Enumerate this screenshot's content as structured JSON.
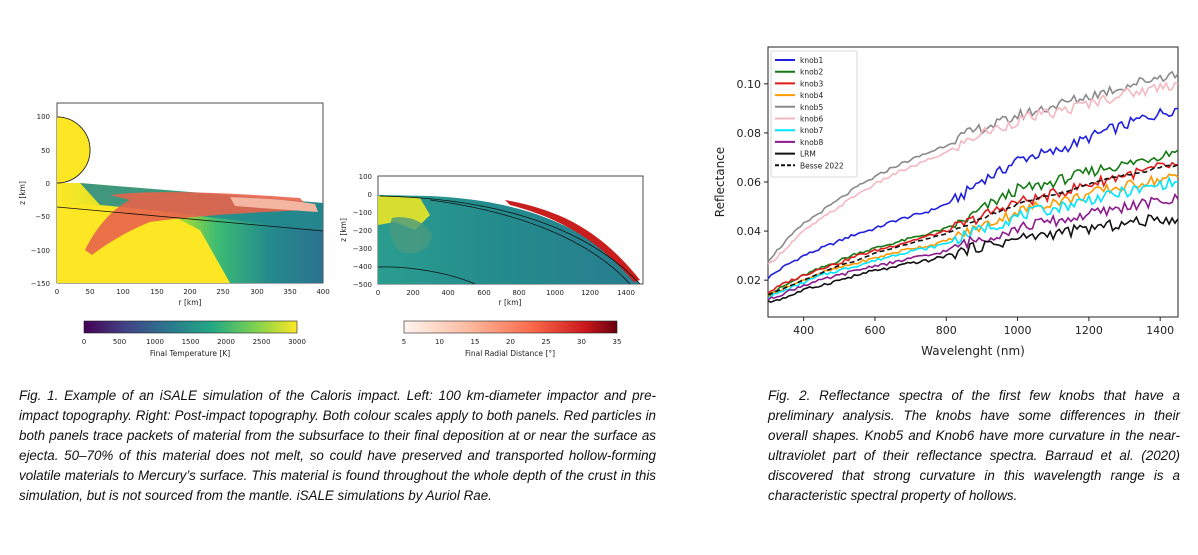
{
  "figure1": {
    "left_panel": {
      "xlabel": "r [km]",
      "ylabel": "z [km]",
      "xticks": [
        "0",
        "50",
        "100",
        "150",
        "200",
        "250",
        "300",
        "350",
        "400"
      ],
      "yticks": [
        "100",
        "50",
        "0",
        "−50",
        "−100",
        "−150"
      ]
    },
    "right_panel": {
      "xlabel": "r [km]",
      "ylabel": "z [km]",
      "xticks": [
        "0",
        "200",
        "400",
        "600",
        "800",
        "1000",
        "1200",
        "1400"
      ],
      "yticks": [
        "100",
        "0",
        "−100",
        "−200",
        "−300",
        "−400",
        "−500"
      ]
    },
    "colorbar_temperature": {
      "label": "Final Temperature [K]",
      "ticks": [
        "0",
        "500",
        "1000",
        "1500",
        "2000",
        "2500",
        "3000"
      ]
    },
    "colorbar_distance": {
      "label": "Final Radial Distance [°]",
      "ticks": [
        "5",
        "10",
        "15",
        "20",
        "25",
        "30",
        "35"
      ]
    },
    "caption": "Fig. 1. Example of an iSALE simulation of the Caloris impact. Left: 100 km-diameter impactor and pre-impact topography. Right: Post-impact topography. Both colour scales apply to both panels. Red particles in both panels trace packets of material from the subsurface to their final deposition at or near the surface as ejecta. 50–70% of this material does not melt, so could have preserved and transported hollow-forming volatile materials to Mercury’s surface. This material is found throughout the whole depth of the crust in this simulation, but is not sourced from the mantle. iSALE simulations by Auriol Rae."
  },
  "figure2": {
    "caption": "Fig. 2. Reflectance spectra of the first few knobs that have a preliminary analysis. The knobs have some differences in their overall shapes. Knob5 and Knob6 have more curvature in the near-ultraviolet part of their reflectance spectra. Barraud et al. (2020) discovered that strong curvature in this wavelength range is a characteristic spectral property of hollows."
  },
  "chart_data": {
    "type": "line",
    "title": "",
    "xlabel": "Wavelenght (nm)",
    "ylabel": "Reflectance",
    "xlim": [
      300,
      1450
    ],
    "ylim": [
      0.005,
      0.115
    ],
    "xticks": [
      400,
      600,
      800,
      1000,
      1200,
      1400
    ],
    "yticks": [
      0.02,
      0.04,
      0.06,
      0.08,
      0.1
    ],
    "ytick_labels": [
      "0.02",
      "0.04",
      "0.06",
      "0.08",
      "0.10"
    ],
    "grid": false,
    "legend_position": "top-left",
    "x": [
      300,
      350,
      400,
      450,
      500,
      550,
      600,
      650,
      700,
      750,
      800,
      850,
      900,
      950,
      1000,
      1050,
      1100,
      1150,
      1200,
      1250,
      1300,
      1350,
      1400,
      1450
    ],
    "series": [
      {
        "name": "knob1",
        "color": "#1f1fe0",
        "dash": "solid",
        "values": [
          0.021,
          0.026,
          0.03,
          0.033,
          0.036,
          0.039,
          0.041,
          0.044,
          0.046,
          0.048,
          0.051,
          0.055,
          0.061,
          0.064,
          0.069,
          0.071,
          0.072,
          0.075,
          0.078,
          0.081,
          0.083,
          0.086,
          0.088,
          0.09
        ]
      },
      {
        "name": "knob2",
        "color": "#157a15",
        "dash": "solid",
        "values": [
          0.014,
          0.018,
          0.022,
          0.025,
          0.028,
          0.031,
          0.033,
          0.035,
          0.037,
          0.039,
          0.041,
          0.044,
          0.049,
          0.053,
          0.057,
          0.058,
          0.06,
          0.062,
          0.064,
          0.066,
          0.067,
          0.069,
          0.071,
          0.073
        ]
      },
      {
        "name": "knob3",
        "color": "#e01a1a",
        "dash": "solid",
        "values": [
          0.015,
          0.019,
          0.022,
          0.025,
          0.027,
          0.03,
          0.032,
          0.034,
          0.036,
          0.038,
          0.04,
          0.043,
          0.046,
          0.049,
          0.052,
          0.053,
          0.055,
          0.057,
          0.059,
          0.061,
          0.063,
          0.064,
          0.066,
          0.067
        ]
      },
      {
        "name": "knob4",
        "color": "#ff9a00",
        "dash": "solid",
        "values": [
          0.014,
          0.017,
          0.02,
          0.023,
          0.025,
          0.027,
          0.029,
          0.031,
          0.033,
          0.034,
          0.036,
          0.039,
          0.042,
          0.045,
          0.048,
          0.05,
          0.052,
          0.053,
          0.055,
          0.057,
          0.058,
          0.06,
          0.061,
          0.062
        ]
      },
      {
        "name": "knob5",
        "color": "#8a8a8a",
        "dash": "solid",
        "values": [
          0.028,
          0.036,
          0.043,
          0.048,
          0.053,
          0.058,
          0.062,
          0.066,
          0.069,
          0.072,
          0.075,
          0.079,
          0.082,
          0.084,
          0.087,
          0.089,
          0.091,
          0.093,
          0.095,
          0.097,
          0.099,
          0.101,
          0.103,
          0.104
        ]
      },
      {
        "name": "knob6",
        "color": "#f5b8c2",
        "dash": "solid",
        "values": [
          0.026,
          0.033,
          0.04,
          0.045,
          0.05,
          0.055,
          0.059,
          0.063,
          0.066,
          0.069,
          0.072,
          0.076,
          0.08,
          0.082,
          0.085,
          0.087,
          0.088,
          0.09,
          0.092,
          0.094,
          0.096,
          0.097,
          0.099,
          0.1
        ]
      },
      {
        "name": "knob7",
        "color": "#00e5ff",
        "dash": "solid",
        "values": [
          0.013,
          0.016,
          0.019,
          0.022,
          0.024,
          0.026,
          0.028,
          0.03,
          0.032,
          0.033,
          0.035,
          0.038,
          0.041,
          0.043,
          0.046,
          0.048,
          0.049,
          0.051,
          0.053,
          0.054,
          0.056,
          0.057,
          0.059,
          0.06
        ]
      },
      {
        "name": "knob8",
        "color": "#8c1a8c",
        "dash": "solid",
        "values": [
          0.012,
          0.015,
          0.018,
          0.02,
          0.022,
          0.024,
          0.026,
          0.027,
          0.029,
          0.03,
          0.032,
          0.035,
          0.037,
          0.039,
          0.041,
          0.043,
          0.044,
          0.045,
          0.047,
          0.048,
          0.05,
          0.051,
          0.052,
          0.053
        ]
      },
      {
        "name": "LRM",
        "color": "#111111",
        "dash": "solid",
        "values": [
          0.011,
          0.013,
          0.016,
          0.018,
          0.02,
          0.022,
          0.024,
          0.025,
          0.027,
          0.028,
          0.03,
          0.032,
          0.034,
          0.035,
          0.037,
          0.038,
          0.039,
          0.04,
          0.041,
          0.042,
          0.043,
          0.044,
          0.045,
          0.045
        ]
      },
      {
        "name": "Besse 2022",
        "color": "#111111",
        "dash": "dashed",
        "values": [
          0.014,
          0.017,
          0.02,
          0.023,
          0.026,
          0.028,
          0.031,
          0.033,
          0.035,
          0.037,
          0.039,
          0.042,
          0.045,
          0.048,
          0.051,
          0.053,
          0.055,
          0.057,
          0.059,
          0.061,
          0.063,
          0.064,
          0.066,
          0.067
        ]
      }
    ]
  }
}
